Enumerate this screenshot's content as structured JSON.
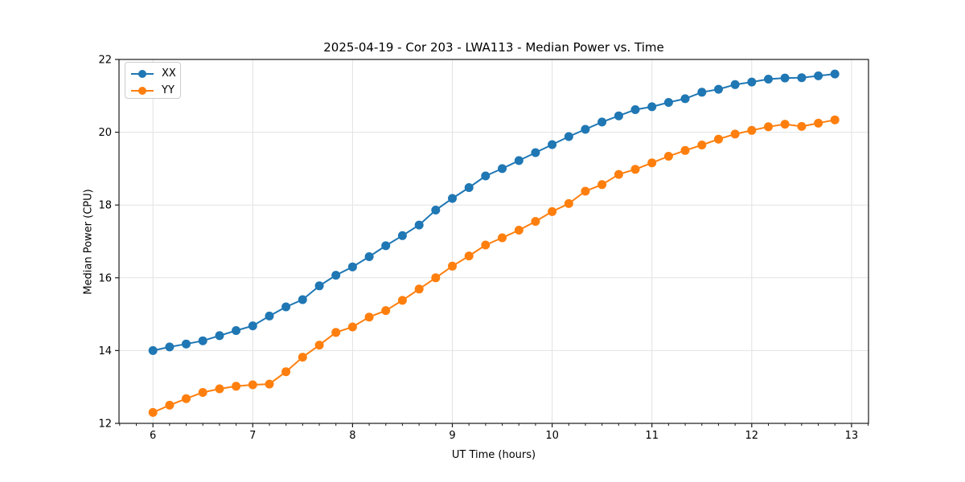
{
  "figure": {
    "title": "2025-04-19 - Cor 203 - LWA113 - Median Power vs. Time",
    "xlabel": "UT Time (hours)",
    "ylabel": "Median Power (CPU)"
  },
  "colors": {
    "grid": "#e2e2e2",
    "spine": "#1a1a1a",
    "text": "#000000",
    "background": "#ffffff"
  },
  "chart_data": {
    "type": "line",
    "title": "2025-04-19 - Cor 203 - LWA113 - Median Power vs. Time",
    "xlabel": "UT Time (hours)",
    "ylabel": "Median Power (CPU)",
    "xlim": [
      5.66,
      13.17
    ],
    "ylim": [
      12,
      22
    ],
    "xticks": [
      6,
      7,
      8,
      9,
      10,
      11,
      12,
      13
    ],
    "yticks": [
      12,
      14,
      16,
      18,
      20,
      22
    ],
    "grid": true,
    "legend_position": "upper left",
    "marker": "o",
    "x": [
      6,
      6.167,
      6.333,
      6.5,
      6.667,
      6.833,
      7,
      7.167,
      7.333,
      7.5,
      7.667,
      7.833,
      8,
      8.167,
      8.333,
      8.5,
      8.667,
      8.833,
      9,
      9.167,
      9.333,
      9.5,
      9.667,
      9.833,
      10,
      10.167,
      10.333,
      10.5,
      10.667,
      10.833,
      11,
      11.167,
      11.333,
      11.5,
      11.667,
      11.833,
      12,
      12.167,
      12.333,
      12.5,
      12.667,
      12.833
    ],
    "series": [
      {
        "name": "XX",
        "color": "#1f77b4",
        "values": [
          14.0,
          14.1,
          14.18,
          14.27,
          14.41,
          14.55,
          14.68,
          14.95,
          15.2,
          15.4,
          15.78,
          16.07,
          16.3,
          16.58,
          16.88,
          17.16,
          17.45,
          17.86,
          18.18,
          18.48,
          18.8,
          19.0,
          19.22,
          19.44,
          19.66,
          19.88,
          20.08,
          20.28,
          20.45,
          20.62,
          20.7,
          20.82,
          20.92,
          21.1,
          21.18,
          21.31,
          21.38,
          21.46,
          21.49,
          21.5,
          21.55,
          21.6
        ]
      },
      {
        "name": "YY",
        "color": "#ff7f0e",
        "values": [
          12.3,
          12.5,
          12.68,
          12.85,
          12.95,
          13.02,
          13.06,
          13.08,
          13.42,
          13.82,
          14.15,
          14.5,
          14.65,
          14.92,
          15.1,
          15.38,
          15.69,
          16.0,
          16.32,
          16.6,
          16.9,
          17.1,
          17.31,
          17.55,
          17.82,
          18.04,
          18.38,
          18.56,
          18.84,
          18.98,
          19.16,
          19.34,
          19.5,
          19.65,
          19.81,
          19.95,
          20.05,
          20.15,
          20.22,
          20.16,
          20.25,
          20.34
        ]
      }
    ]
  }
}
